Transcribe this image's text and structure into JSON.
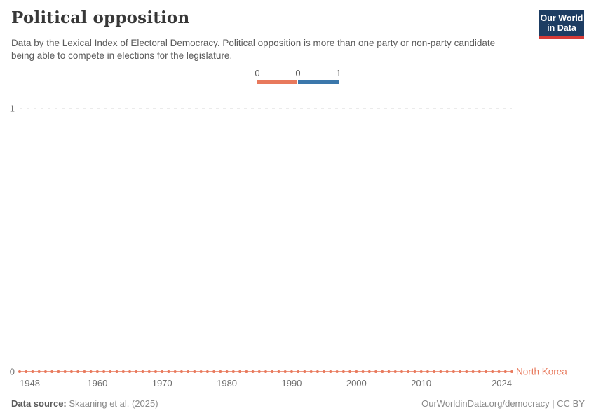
{
  "header": {
    "title": "Political opposition",
    "subtitle": "Data by the Lexical Index of Electoral Democracy. Political opposition is more than one party or non-party candidate being able to compete in elections for the legislature."
  },
  "logo": {
    "line1": "Our World",
    "line2": "in Data",
    "bg_color": "#1d3d63",
    "accent_color": "#d73b37"
  },
  "legend": {
    "tick_labels": [
      "0",
      "0",
      "1"
    ],
    "segments": [
      {
        "value": 0,
        "color": "#e8795c"
      },
      {
        "value": 1,
        "color": "#3b77ab"
      }
    ]
  },
  "chart_data": {
    "type": "line",
    "title": "Political opposition",
    "xlabel": "",
    "ylabel": "",
    "xlim": [
      1948,
      2024
    ],
    "ylim": [
      0,
      1
    ],
    "x_ticks": [
      1948,
      1960,
      1970,
      1980,
      1990,
      2000,
      2010,
      2024
    ],
    "y_ticks": [
      0,
      1
    ],
    "grid": "dashed-horizontal",
    "grid_color": "#d7d7d7",
    "tick_label_color": "#6e6e6e",
    "legend_position": "top-center",
    "series": [
      {
        "name": "North Korea",
        "color": "#e8795c",
        "x": [
          1948,
          1949,
          1950,
          1951,
          1952,
          1953,
          1954,
          1955,
          1956,
          1957,
          1958,
          1959,
          1960,
          1961,
          1962,
          1963,
          1964,
          1965,
          1966,
          1967,
          1968,
          1969,
          1970,
          1971,
          1972,
          1973,
          1974,
          1975,
          1976,
          1977,
          1978,
          1979,
          1980,
          1981,
          1982,
          1983,
          1984,
          1985,
          1986,
          1987,
          1988,
          1989,
          1990,
          1991,
          1992,
          1993,
          1994,
          1995,
          1996,
          1997,
          1998,
          1999,
          2000,
          2001,
          2002,
          2003,
          2004,
          2005,
          2006,
          2007,
          2008,
          2009,
          2010,
          2011,
          2012,
          2013,
          2014,
          2015,
          2016,
          2017,
          2018,
          2019,
          2020,
          2021,
          2022,
          2023,
          2024
        ],
        "values": [
          0,
          0,
          0,
          0,
          0,
          0,
          0,
          0,
          0,
          0,
          0,
          0,
          0,
          0,
          0,
          0,
          0,
          0,
          0,
          0,
          0,
          0,
          0,
          0,
          0,
          0,
          0,
          0,
          0,
          0,
          0,
          0,
          0,
          0,
          0,
          0,
          0,
          0,
          0,
          0,
          0,
          0,
          0,
          0,
          0,
          0,
          0,
          0,
          0,
          0,
          0,
          0,
          0,
          0,
          0,
          0,
          0,
          0,
          0,
          0,
          0,
          0,
          0,
          0,
          0,
          0,
          0,
          0,
          0,
          0,
          0,
          0,
          0,
          0,
          0,
          0,
          0
        ]
      }
    ]
  },
  "footer": {
    "source_label": "Data source:",
    "source_text": "Skaaning et al. (2025)",
    "right_text": "OurWorldinData.org/democracy | CC BY"
  }
}
